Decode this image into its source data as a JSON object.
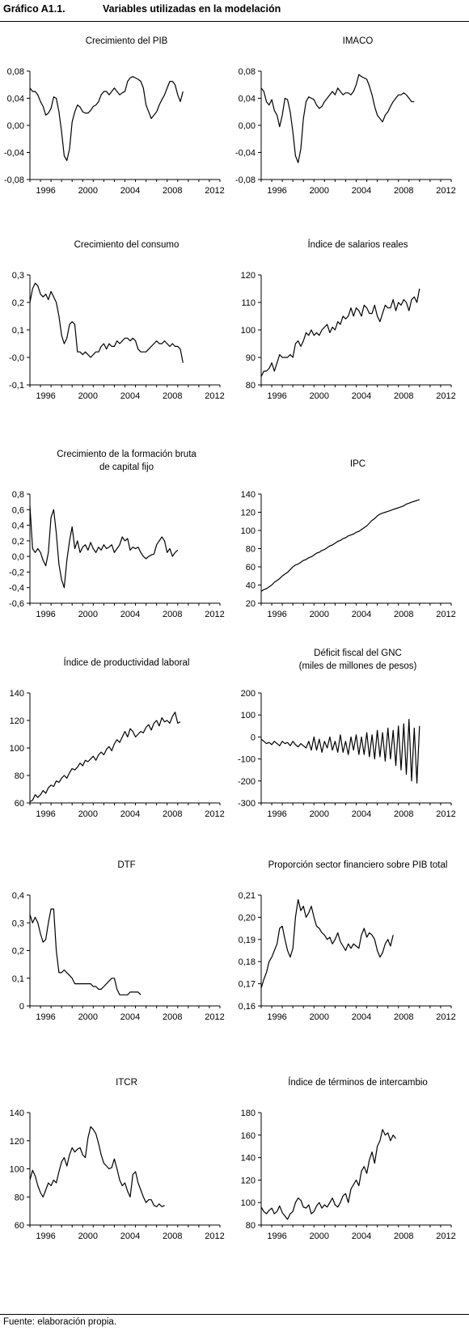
{
  "figure": {
    "number": "Gráfico A1.1.",
    "title": "Variables utilizadas en la modelación",
    "source_note": "Fuente: elaboración propia."
  },
  "chart_data": [
    {
      "type": "line",
      "title": "Crecimiento del PIB",
      "x_start": 1995.0,
      "x_step": 0.25,
      "x_ticks": [
        "1996",
        "2000",
        "2004",
        "2008",
        "2012"
      ],
      "ylim": [
        -0.08,
        0.08
      ],
      "y_ticks": [
        "0,08",
        "0,04",
        "0,00",
        "-0,04",
        "-0,08"
      ],
      "series": [
        {
          "values": [
            0.055,
            0.05,
            0.05,
            0.045,
            0.035,
            0.028,
            0.015,
            0.018,
            0.025,
            0.042,
            0.04,
            0.02,
            -0.01,
            -0.045,
            -0.052,
            -0.035,
            0.005,
            0.02,
            0.03,
            0.027,
            0.02,
            0.018,
            0.018,
            0.022,
            0.028,
            0.03,
            0.035,
            0.045,
            0.05,
            0.05,
            0.045,
            0.05,
            0.055,
            0.05,
            0.045,
            0.048,
            0.05,
            0.065,
            0.07,
            0.072,
            0.07,
            0.068,
            0.065,
            0.055,
            0.03,
            0.02,
            0.01,
            0.015,
            0.02,
            0.03,
            0.038,
            0.045,
            0.055,
            0.065,
            0.065,
            0.06,
            0.045,
            0.035,
            0.05
          ]
        }
      ]
    },
    {
      "type": "line",
      "title": "IMACO",
      "x_start": 1995.0,
      "x_step": 0.25,
      "x_ticks": [
        "1996",
        "2000",
        "2004",
        "2008",
        "2012"
      ],
      "ylim": [
        -0.08,
        0.08
      ],
      "y_ticks": [
        "0,08",
        "0,04",
        "0,00",
        "-0,04",
        "-0,08"
      ],
      "series": [
        {
          "values": [
            0.055,
            0.05,
            0.035,
            0.03,
            0.038,
            0.022,
            0.015,
            -0.002,
            0.015,
            0.04,
            0.038,
            0.02,
            -0.01,
            -0.045,
            -0.055,
            -0.035,
            0.01,
            0.035,
            0.042,
            0.04,
            0.038,
            0.03,
            0.025,
            0.028,
            0.035,
            0.04,
            0.045,
            0.05,
            0.045,
            0.055,
            0.05,
            0.045,
            0.048,
            0.048,
            0.045,
            0.05,
            0.06,
            0.075,
            0.072,
            0.07,
            0.068,
            0.058,
            0.045,
            0.028,
            0.015,
            0.01,
            0.005,
            0.015,
            0.02,
            0.028,
            0.035,
            0.04,
            0.045,
            0.045,
            0.048,
            0.045,
            0.04,
            0.035,
            0.035
          ]
        }
      ]
    },
    {
      "type": "line",
      "title": "Crecimiento del consumo",
      "x_start": 1995.0,
      "x_step": 0.25,
      "x_ticks": [
        "1996",
        "2000",
        "2004",
        "2008",
        "2012"
      ],
      "ylim": [
        -0.1,
        0.3
      ],
      "y_ticks": [
        "0,3",
        "0,2",
        "0,1",
        "-0,0",
        "-0,1"
      ],
      "series": [
        {
          "values": [
            0.2,
            0.25,
            0.27,
            0.26,
            0.23,
            0.22,
            0.23,
            0.21,
            0.24,
            0.22,
            0.2,
            0.15,
            0.08,
            0.05,
            0.07,
            0.12,
            0.13,
            0.12,
            0.02,
            0.02,
            0.01,
            0.02,
            0.01,
            0.0,
            0.01,
            0.02,
            0.02,
            0.04,
            0.05,
            0.03,
            0.05,
            0.04,
            0.04,
            0.06,
            0.05,
            0.06,
            0.07,
            0.07,
            0.06,
            0.07,
            0.06,
            0.03,
            0.02,
            0.02,
            0.02,
            0.03,
            0.04,
            0.05,
            0.06,
            0.05,
            0.05,
            0.06,
            0.05,
            0.04,
            0.05,
            0.04,
            0.04,
            0.03,
            -0.02
          ]
        }
      ]
    },
    {
      "type": "line",
      "title": "Índice de salarios reales",
      "x_start": 1995.0,
      "x_step": 0.25,
      "x_ticks": [
        "1996",
        "2000",
        "2004",
        "2008",
        "2012"
      ],
      "ylim": [
        80,
        120
      ],
      "y_ticks": [
        "120",
        "110",
        "100",
        "90",
        "80"
      ],
      "series": [
        {
          "values": [
            83,
            85,
            85,
            86,
            88,
            85,
            88,
            91,
            90,
            90,
            90,
            91,
            90,
            95,
            96,
            94,
            96,
            99,
            98,
            100,
            98,
            99,
            98,
            100,
            101,
            102,
            99,
            101,
            100,
            103,
            102,
            105,
            104,
            105,
            108,
            105,
            108,
            107,
            105,
            109,
            108,
            106,
            106,
            109,
            105,
            103,
            106,
            109,
            108,
            108,
            111,
            107,
            110,
            109,
            111,
            110,
            107,
            111,
            112,
            110,
            115
          ]
        }
      ]
    },
    {
      "type": "line",
      "title": "Crecimiento de la formación bruta de capital fijo",
      "title_lines": [
        "Crecimiento de la formación bruta",
        "de capital fijo"
      ],
      "x_start": 1995.0,
      "x_step": 0.25,
      "x_ticks": [
        "1996",
        "2000",
        "2004",
        "2008",
        "2012"
      ],
      "ylim": [
        -0.6,
        0.8
      ],
      "y_ticks": [
        "0,8",
        "0,6",
        "0,4",
        "0,2",
        "0,0",
        "-0,2",
        "-0,4",
        "-0,6"
      ],
      "series": [
        {
          "values": [
            0.65,
            0.1,
            0.05,
            0.1,
            0.05,
            -0.05,
            -0.12,
            0.05,
            0.5,
            0.6,
            0.3,
            -0.1,
            -0.3,
            -0.4,
            -0.05,
            0.2,
            0.38,
            0.1,
            0.2,
            0.05,
            0.12,
            0.15,
            0.08,
            0.18,
            0.1,
            0.05,
            0.12,
            0.08,
            0.15,
            0.1,
            0.12,
            0.15,
            0.05,
            0.1,
            0.15,
            0.25,
            0.2,
            0.23,
            0.08,
            0.12,
            0.1,
            0.12,
            0.05,
            0.0,
            -0.03,
            0.0,
            0.02,
            0.03,
            0.15,
            0.2,
            0.25,
            0.2,
            0.05,
            0.1,
            0.0,
            0.05,
            0.08
          ]
        }
      ]
    },
    {
      "type": "line",
      "title": "IPC",
      "x_start": 1995.0,
      "x_step": 0.25,
      "x_ticks": [
        "1996",
        "2000",
        "2004",
        "2008",
        "2012"
      ],
      "ylim": [
        20,
        140
      ],
      "y_ticks": [
        "140",
        "120",
        "100",
        "80",
        "60",
        "40",
        "20"
      ],
      "series": [
        {
          "values": [
            33,
            35,
            36,
            38,
            40,
            43,
            45,
            47,
            50,
            52,
            54,
            57,
            60,
            62,
            63,
            65,
            67,
            68,
            70,
            71,
            73,
            75,
            76,
            78,
            79,
            81,
            83,
            84,
            86,
            88,
            89,
            91,
            92,
            94,
            95,
            96,
            98,
            99,
            101,
            103,
            105,
            108,
            111,
            113,
            116,
            118,
            119,
            120,
            121,
            122,
            123,
            124,
            125,
            126,
            127,
            129,
            130,
            131,
            132,
            133,
            134
          ]
        }
      ]
    },
    {
      "type": "line",
      "title": "Índice de productividad laboral",
      "x_start": 1995.0,
      "x_step": 0.25,
      "x_ticks": [
        "1996",
        "2000",
        "2004",
        "2008",
        "2012"
      ],
      "ylim": [
        60,
        140
      ],
      "y_ticks": [
        "140",
        "120",
        "100",
        "80",
        "60"
      ],
      "series": [
        {
          "values": [
            61,
            62,
            66,
            64,
            66,
            69,
            67,
            71,
            73,
            72,
            76,
            75,
            78,
            80,
            78,
            82,
            85,
            84,
            86,
            89,
            87,
            91,
            90,
            92,
            94,
            91,
            95,
            97,
            95,
            99,
            101,
            98,
            103,
            106,
            104,
            108,
            112,
            108,
            114,
            112,
            108,
            110,
            112,
            111,
            115,
            117,
            113,
            118,
            120,
            116,
            122,
            119,
            120,
            118,
            123,
            126,
            118,
            119
          ]
        }
      ]
    },
    {
      "type": "line",
      "title": "Déficit fiscal del GNC",
      "title_lines": [
        "Déficit fiscal del GNC",
        "(miles de millones de pesos)"
      ],
      "x_start": 1995.0,
      "x_step": 0.25,
      "x_ticks": [
        "1996",
        "2000",
        "2004",
        "2008",
        "2012"
      ],
      "ylim": [
        -300,
        200
      ],
      "y_ticks": [
        "200",
        "100",
        "0",
        "-100",
        "-200",
        "-300"
      ],
      "series": [
        {
          "values": [
            -10,
            -20,
            -30,
            -25,
            -35,
            -20,
            -30,
            -40,
            -20,
            -30,
            -25,
            -40,
            -20,
            -35,
            -45,
            -30,
            -40,
            -50,
            -20,
            -60,
            0,
            -60,
            -10,
            -70,
            -20,
            -50,
            0,
            -60,
            -20,
            -70,
            10,
            -70,
            -20,
            -80,
            0,
            -60,
            10,
            -80,
            0,
            -80,
            20,
            -90,
            10,
            -100,
            30,
            -90,
            20,
            -110,
            40,
            -100,
            30,
            -130,
            50,
            -150,
            60,
            -170,
            80,
            -200,
            40,
            -210,
            50
          ]
        }
      ]
    },
    {
      "type": "line",
      "title": "DTF",
      "x_start": 1995.0,
      "x_step": 0.25,
      "x_ticks": [
        "1996",
        "2000",
        "2004",
        "2008",
        "2012"
      ],
      "ylim": [
        0,
        0.4
      ],
      "y_ticks": [
        "0,4",
        "0,3",
        "0,2",
        "0,1",
        "0"
      ],
      "series": [
        {
          "values": [
            0.33,
            0.3,
            0.32,
            0.3,
            0.26,
            0.23,
            0.24,
            0.3,
            0.35,
            0.35,
            0.2,
            0.12,
            0.12,
            0.13,
            0.12,
            0.11,
            0.1,
            0.08,
            0.08,
            0.08,
            0.08,
            0.08,
            0.08,
            0.08,
            0.07,
            0.07,
            0.06,
            0.06,
            0.07,
            0.08,
            0.09,
            0.1,
            0.1,
            0.06,
            0.04,
            0.04,
            0.04,
            0.04,
            0.05,
            0.05,
            0.05,
            0.05,
            0.04
          ]
        }
      ]
    },
    {
      "type": "line",
      "title": "Proporción sector financiero sobre PIB total",
      "x_start": 1995.0,
      "x_step": 0.25,
      "x_ticks": [
        "1996",
        "2000",
        "2004",
        "2008",
        "2012"
      ],
      "ylim": [
        0.16,
        0.21
      ],
      "y_ticks": [
        "0,21",
        "0,20",
        "0,19",
        "0,18",
        "0,17",
        "0,16"
      ],
      "series": [
        {
          "values": [
            0.168,
            0.172,
            0.175,
            0.18,
            0.182,
            0.185,
            0.188,
            0.195,
            0.196,
            0.19,
            0.185,
            0.182,
            0.186,
            0.2,
            0.208,
            0.203,
            0.205,
            0.2,
            0.202,
            0.205,
            0.2,
            0.196,
            0.195,
            0.193,
            0.192,
            0.19,
            0.191,
            0.188,
            0.19,
            0.193,
            0.189,
            0.187,
            0.185,
            0.188,
            0.186,
            0.188,
            0.187,
            0.186,
            0.192,
            0.195,
            0.191,
            0.193,
            0.192,
            0.19,
            0.185,
            0.182,
            0.184,
            0.188,
            0.19,
            0.187,
            0.192
          ]
        }
      ]
    },
    {
      "type": "line",
      "title": "ITCR",
      "x_start": 1995.0,
      "x_step": 0.25,
      "x_ticks": [
        "1996",
        "2000",
        "2004",
        "2008",
        "2012"
      ],
      "ylim": [
        60,
        140
      ],
      "y_ticks": [
        "140",
        "120",
        "100",
        "80",
        "60"
      ],
      "series": [
        {
          "values": [
            92,
            99,
            95,
            88,
            83,
            80,
            85,
            90,
            88,
            92,
            90,
            98,
            105,
            108,
            102,
            110,
            115,
            112,
            114,
            115,
            110,
            108,
            122,
            130,
            128,
            125,
            118,
            110,
            104,
            102,
            100,
            101,
            107,
            100,
            92,
            88,
            90,
            84,
            80,
            96,
            98,
            90,
            85,
            80,
            76,
            78,
            78,
            74,
            73,
            75,
            73,
            74
          ]
        }
      ]
    },
    {
      "type": "line",
      "title": "Índice de términos de intercambio",
      "x_start": 1995.0,
      "x_step": 0.25,
      "x_ticks": [
        "1996",
        "2000",
        "2004",
        "2008",
        "2012"
      ],
      "ylim": [
        80,
        180
      ],
      "y_ticks": [
        "180",
        "160",
        "140",
        "120",
        "100",
        "80"
      ],
      "series": [
        {
          "values": [
            96,
            92,
            90,
            93,
            95,
            90,
            92,
            97,
            91,
            88,
            85,
            90,
            92,
            100,
            104,
            102,
            96,
            95,
            98,
            90,
            92,
            97,
            100,
            95,
            98,
            96,
            100,
            104,
            98,
            96,
            100,
            106,
            108,
            100,
            112,
            116,
            120,
            115,
            128,
            132,
            126,
            138,
            145,
            135,
            150,
            155,
            165,
            160,
            162,
            155,
            160,
            157
          ]
        }
      ]
    }
  ]
}
